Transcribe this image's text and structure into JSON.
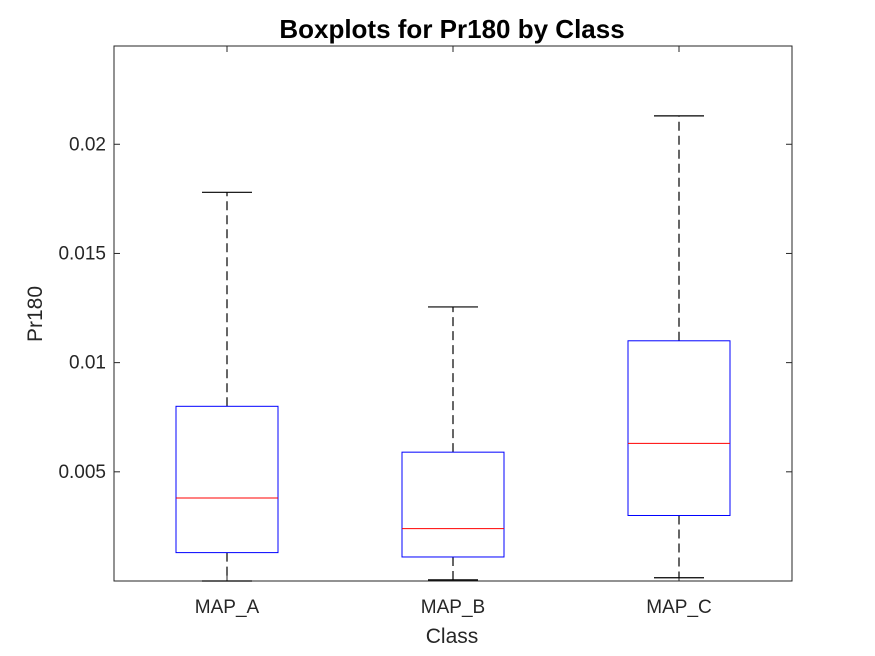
{
  "chart_data": {
    "type": "boxplot",
    "title": "Boxplots for Pr180 by Class",
    "xlabel": "Class",
    "ylabel": "Pr180",
    "ylim": [
      0,
      0.0245
    ],
    "yticks": [
      0.005,
      0.01,
      0.015,
      0.02
    ],
    "ytick_labels": [
      "0.005",
      "0.01",
      "0.015",
      "0.02"
    ],
    "grid": false,
    "categories": [
      "MAP_A",
      "MAP_B",
      "MAP_C"
    ],
    "boxes": [
      {
        "category": "MAP_A",
        "whisker_low": 0.0,
        "q1": 0.0013,
        "median": 0.0038,
        "q3": 0.008,
        "whisker_high": 0.0178
      },
      {
        "category": "MAP_B",
        "whisker_low": 5e-05,
        "q1": 0.0011,
        "median": 0.0024,
        "q3": 0.0059,
        "whisker_high": 0.01255
      },
      {
        "category": "MAP_C",
        "whisker_low": 0.00015,
        "q1": 0.003,
        "median": 0.0063,
        "q3": 0.011,
        "whisker_high": 0.0213
      }
    ],
    "colors": {
      "box": "#0000ff",
      "median": "#ff0000",
      "whisker": "#000000",
      "axes": "#262626"
    }
  }
}
